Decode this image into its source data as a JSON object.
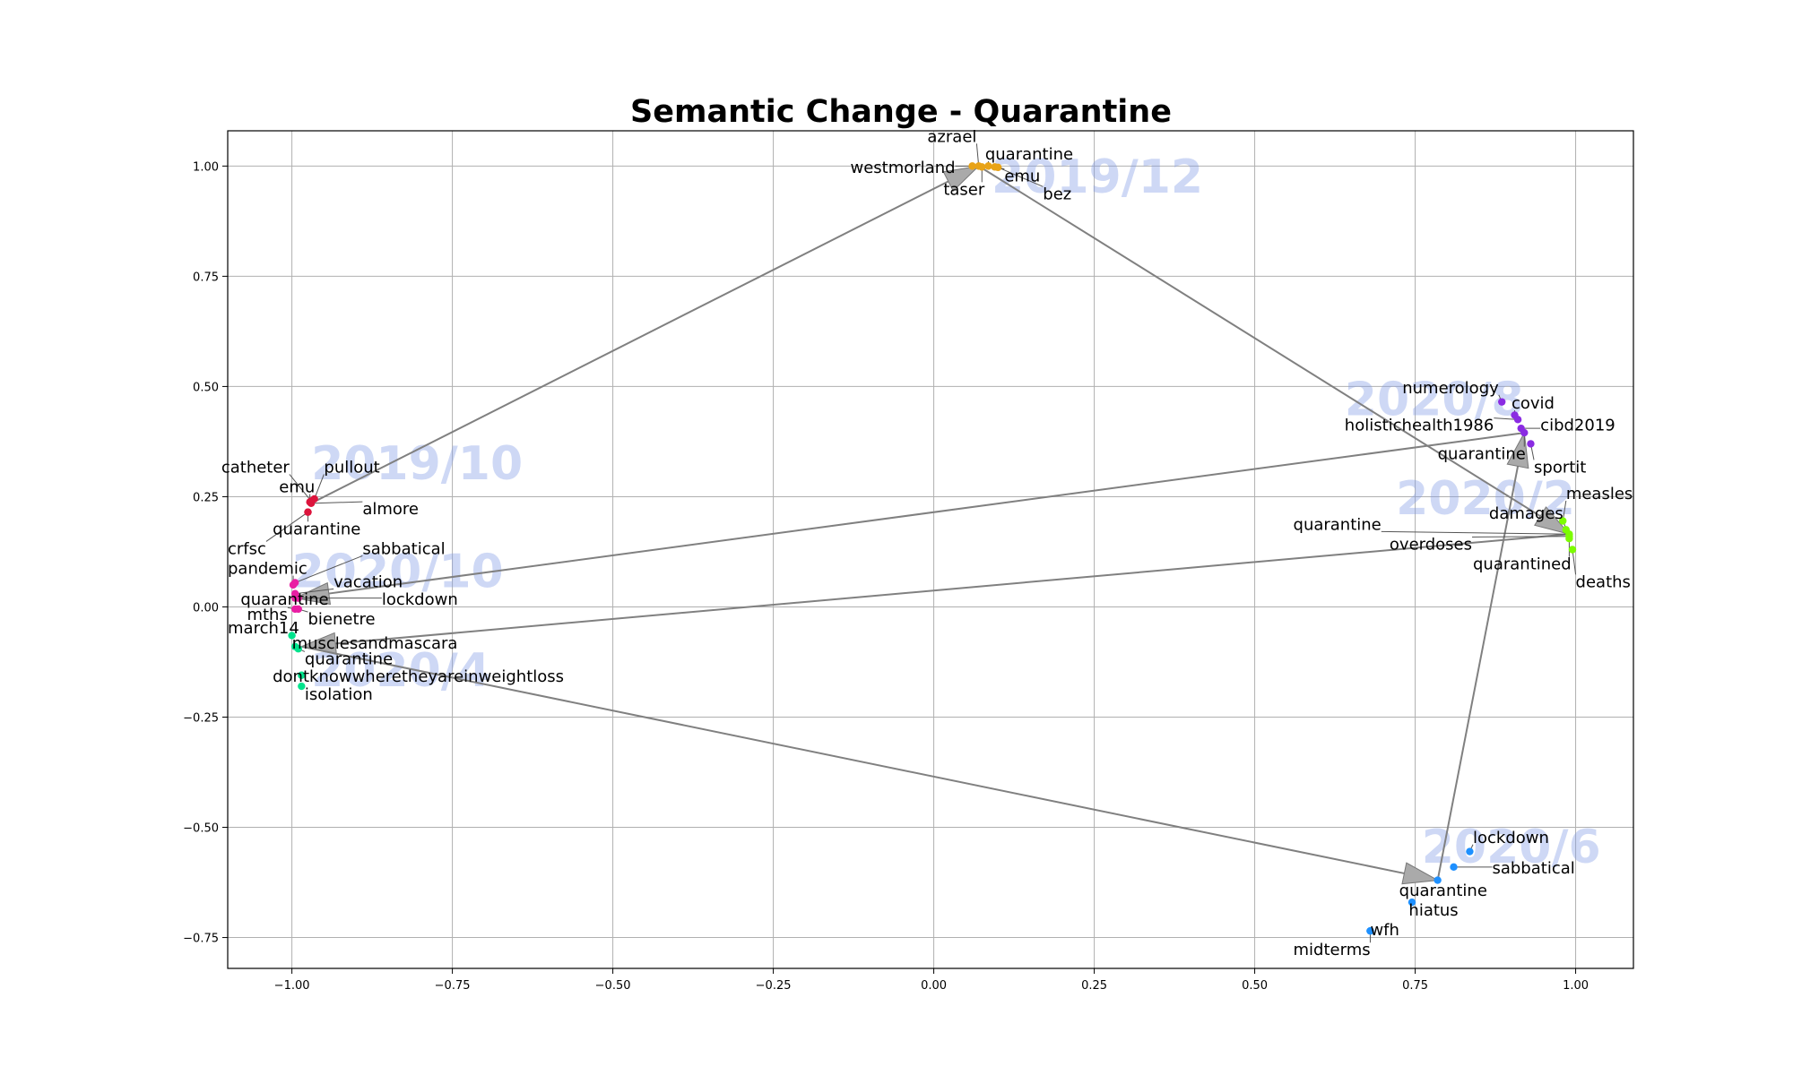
{
  "chart_data": {
    "type": "scatter",
    "title": "Semantic Change - Quarantine",
    "xlabel": "",
    "ylabel": "",
    "xlim": [
      -1.1,
      1.09
    ],
    "ylim": [
      -0.82,
      1.08
    ],
    "grid": true,
    "x_ticks": [
      -1.0,
      -0.75,
      -0.5,
      -0.25,
      0.0,
      0.25,
      0.5,
      0.75,
      1.0
    ],
    "x_tick_labels": [
      "−1.00",
      "−0.75",
      "−0.50",
      "−0.25",
      "0.00",
      "0.25",
      "0.50",
      "0.75",
      "1.00"
    ],
    "y_ticks": [
      -0.75,
      -0.5,
      -0.25,
      0.0,
      0.25,
      0.5,
      0.75,
      1.0
    ],
    "y_tick_labels": [
      "−0.75",
      "−0.50",
      "−0.25",
      "0.00",
      "0.25",
      "0.50",
      "0.75",
      "1.00"
    ],
    "trajectory": [
      "2019/10",
      "2019/12",
      "2020/2",
      "2020/4",
      "2020/6",
      "2020/8",
      "2020/10"
    ],
    "groups": [
      {
        "period": "2019/10",
        "color": "#dc143c",
        "anchor": [
          -0.97,
          0.235
        ],
        "label_pos": [
          -0.97,
          0.29
        ],
        "points": [
          {
            "word": "catheter",
            "x": -0.97,
            "y": 0.24,
            "lx": -1.11,
            "ly": 0.305
          },
          {
            "word": "pullout",
            "x": -0.965,
            "y": 0.245,
            "lx": -0.95,
            "ly": 0.305
          },
          {
            "word": "emu",
            "x": -0.972,
            "y": 0.238,
            "lx": -1.02,
            "ly": 0.26
          },
          {
            "word": "almore",
            "x": -0.97,
            "y": 0.235,
            "lx": -0.89,
            "ly": 0.21
          },
          {
            "word": "quarantine",
            "x": -0.975,
            "y": 0.215,
            "lx": -1.03,
            "ly": 0.165
          },
          {
            "word": "crfsc",
            "x": -0.975,
            "y": 0.215,
            "lx": -1.1,
            "ly": 0.12
          }
        ]
      },
      {
        "period": "2019/12",
        "color": "#e8a317",
        "anchor": [
          0.07,
          1.0
        ],
        "label_pos": [
          0.09,
          0.94
        ],
        "points": [
          {
            "word": "azrael",
            "x": 0.07,
            "y": 1.0,
            "lx": -0.01,
            "ly": 1.055
          },
          {
            "word": "quarantine",
            "x": 0.085,
            "y": 1.0,
            "lx": 0.08,
            "ly": 1.015
          },
          {
            "word": "westmorland",
            "x": 0.06,
            "y": 1.0,
            "lx": -0.13,
            "ly": 0.985
          },
          {
            "word": "emu",
            "x": 0.095,
            "y": 0.998,
            "lx": 0.11,
            "ly": 0.965
          },
          {
            "word": "taser",
            "x": 0.075,
            "y": 0.998,
            "lx": 0.015,
            "ly": 0.935
          },
          {
            "word": "bez",
            "x": 0.1,
            "y": 0.997,
            "lx": 0.17,
            "ly": 0.925
          }
        ]
      },
      {
        "period": "2020/2",
        "color": "#7cfc00",
        "anchor": [
          0.99,
          0.165
        ],
        "label_pos": [
          0.72,
          0.21
        ],
        "points": [
          {
            "word": "measles",
            "x": 0.98,
            "y": 0.195,
            "lx": 0.985,
            "ly": 0.245
          },
          {
            "word": "damages",
            "x": 0.985,
            "y": 0.175,
            "lx": 0.865,
            "ly": 0.2
          },
          {
            "word": "quarantine",
            "x": 0.99,
            "y": 0.165,
            "lx": 0.56,
            "ly": 0.175
          },
          {
            "word": "overdoses",
            "x": 0.99,
            "y": 0.16,
            "lx": 0.71,
            "ly": 0.13
          },
          {
            "word": "quarantined",
            "x": 0.99,
            "y": 0.155,
            "lx": 0.84,
            "ly": 0.085
          },
          {
            "word": "deaths",
            "x": 0.995,
            "y": 0.13,
            "lx": 1.0,
            "ly": 0.045
          }
        ]
      },
      {
        "period": "2020/4",
        "color": "#00e38c",
        "anchor": [
          -0.985,
          -0.09
        ],
        "label_pos": [
          -0.97,
          -0.18
        ],
        "points": [
          {
            "word": "march14",
            "x": -1.0,
            "y": -0.065,
            "lx": -1.1,
            "ly": -0.06
          },
          {
            "word": "musclesandmascara",
            "x": -0.995,
            "y": -0.09,
            "lx": -1.0,
            "ly": -0.095
          },
          {
            "word": "quarantine",
            "x": -0.99,
            "y": -0.095,
            "lx": -0.98,
            "ly": -0.13
          },
          {
            "word": "dontknowwheretheyareinweightloss",
            "x": -0.985,
            "y": -0.155,
            "lx": -1.03,
            "ly": -0.17
          },
          {
            "word": "isolation",
            "x": -0.985,
            "y": -0.18,
            "lx": -0.98,
            "ly": -0.21
          }
        ]
      },
      {
        "period": "2020/6",
        "color": "#1e90ff",
        "anchor": [
          0.785,
          -0.62
        ],
        "label_pos": [
          0.76,
          -0.58
        ],
        "points": [
          {
            "word": "lockdown",
            "x": 0.835,
            "y": -0.555,
            "lx": 0.84,
            "ly": -0.535
          },
          {
            "word": "sabbatical",
            "x": 0.81,
            "y": -0.59,
            "lx": 0.87,
            "ly": -0.605
          },
          {
            "word": "quarantine",
            "x": 0.785,
            "y": -0.62,
            "lx": 0.725,
            "ly": -0.655
          },
          {
            "word": "hiatus",
            "x": 0.745,
            "y": -0.67,
            "lx": 0.74,
            "ly": -0.7
          },
          {
            "word": "wfh",
            "x": 0.68,
            "y": -0.735,
            "lx": 0.68,
            "ly": -0.745
          },
          {
            "word": "midterms",
            "x": 0.68,
            "y": -0.735,
            "lx": 0.56,
            "ly": -0.79
          }
        ]
      },
      {
        "period": "2020/8",
        "color": "#8a2be2",
        "anchor": [
          0.92,
          0.395
        ],
        "label_pos": [
          0.64,
          0.435
        ],
        "points": [
          {
            "word": "numerology",
            "x": 0.885,
            "y": 0.465,
            "lx": 0.73,
            "ly": 0.485
          },
          {
            "word": "covid",
            "x": 0.905,
            "y": 0.435,
            "lx": 0.9,
            "ly": 0.45
          },
          {
            "word": "holistichealth1986",
            "x": 0.91,
            "y": 0.425,
            "lx": 0.64,
            "ly": 0.4
          },
          {
            "word": "cibd2019",
            "x": 0.915,
            "y": 0.405,
            "lx": 0.945,
            "ly": 0.4
          },
          {
            "word": "quarantine",
            "x": 0.92,
            "y": 0.395,
            "lx": 0.785,
            "ly": 0.335
          },
          {
            "word": "sportit",
            "x": 0.93,
            "y": 0.37,
            "lx": 0.935,
            "ly": 0.305
          }
        ]
      },
      {
        "period": "2020/10",
        "color": "#e91ea3",
        "anchor": [
          -0.995,
          0.02
        ],
        "label_pos": [
          -1.0,
          0.045
        ],
        "points": [
          {
            "word": "sabbatical",
            "x": -0.995,
            "y": 0.055,
            "lx": -0.89,
            "ly": 0.12
          },
          {
            "word": "pandemic",
            "x": -0.998,
            "y": 0.05,
            "lx": -1.1,
            "ly": 0.075
          },
          {
            "word": "vacation",
            "x": -0.995,
            "y": 0.03,
            "lx": -0.935,
            "ly": 0.045
          },
          {
            "word": "quarantine",
            "x": -0.995,
            "y": 0.02,
            "lx": -1.08,
            "ly": 0.005
          },
          {
            "word": "lockdown",
            "x": -0.99,
            "y": 0.02,
            "lx": -0.86,
            "ly": 0.005
          },
          {
            "word": "mths",
            "x": -0.995,
            "y": -0.005,
            "lx": -1.07,
            "ly": -0.03
          },
          {
            "word": "bienetre",
            "x": -0.99,
            "y": -0.005,
            "lx": -0.975,
            "ly": -0.04
          }
        ]
      }
    ]
  }
}
